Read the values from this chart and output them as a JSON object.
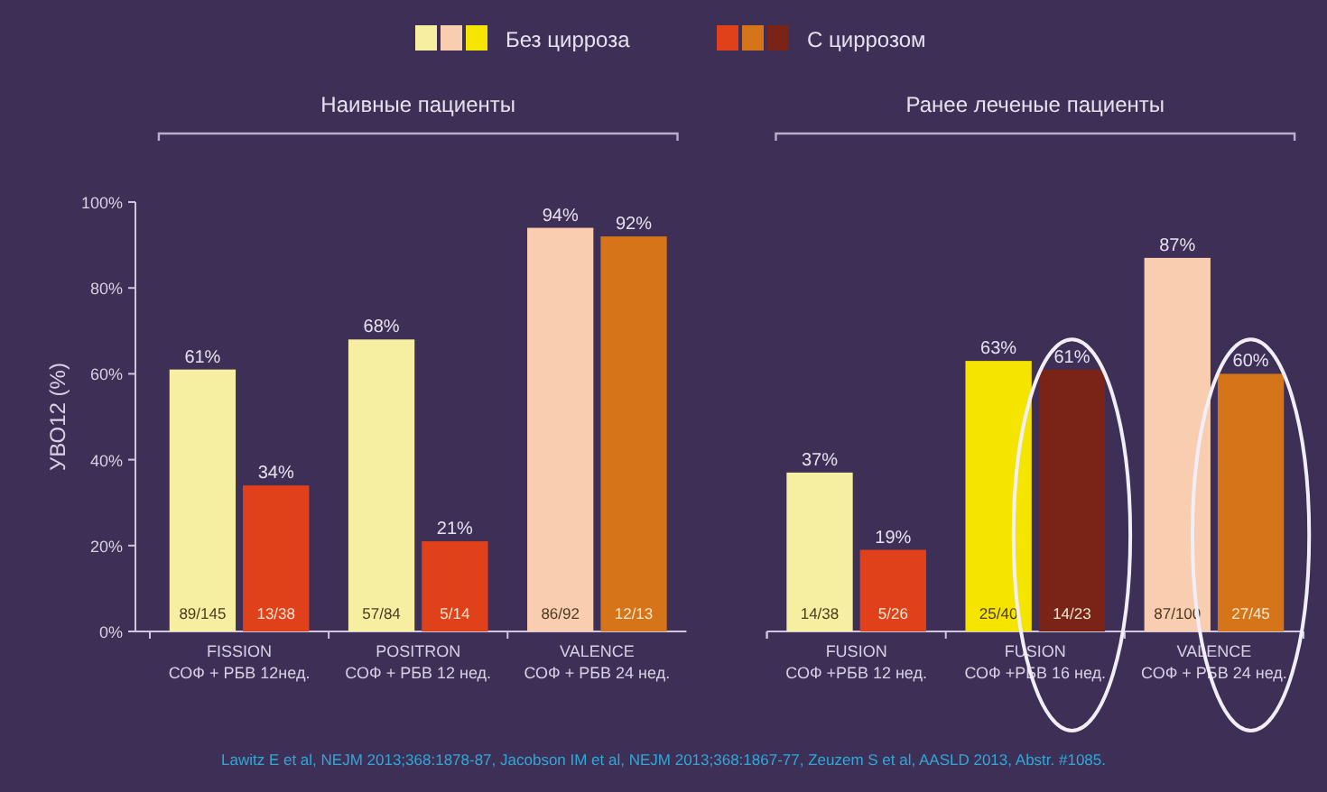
{
  "chart_data": {
    "type": "bar",
    "ylabel": "УВО12 (%)",
    "categories": [
      "FISSION\nСОФ + РБВ 12нед.",
      "POSITRON\nСОФ + РБВ 12 нед.",
      "VALENCE\nСОФ + РБВ 24 нед.",
      "FUSION\nСОФ +РБВ 12 нед.",
      "FUSION\nСОФ +РБВ 16 нед.",
      "VALENCE\nСОФ + РБВ 24 нед. "
    ],
    "series": [
      {
        "name": "Без цирроза",
        "color": "#f6eea0",
        "colors": [
          "#f6eea0",
          "#f6eea0",
          "#f8cdb0",
          "#f6eea0",
          "#f5e400",
          "#f8cdb0"
        ],
        "values": [
          61,
          68,
          94,
          37,
          63,
          87
        ],
        "value_labels": [
          "61%",
          "68%",
          "94%",
          "37%",
          "63%",
          "87%"
        ]
      },
      {
        "name": "С циррозом",
        "color": "#e0401a",
        "colors": [
          "#e0401a",
          "#e0401a",
          "#d57418",
          "#e0401a",
          "#7a2418",
          "#d57418"
        ],
        "values": [
          34,
          21,
          92,
          19,
          61,
          60
        ],
        "value_labels": [
          "34%",
          "21%",
          "92%",
          "19%",
          "61%",
          "60%"
        ]
      }
    ],
    "ylim": [
      0,
      100
    ],
    "yticks": [
      {
        "value": 0,
        "label": "0%"
      },
      {
        "value": 20,
        "label": "20%"
      },
      {
        "value": 40,
        "label": "40%"
      },
      {
        "value": 60,
        "label": "60%"
      },
      {
        "value": 80,
        "label": "80%"
      },
      {
        "value": 100,
        "label": "100%"
      }
    ],
    "legend": "top",
    "annotations": [
      "Наивные пациенты",
      "Ранее леченые пациенты",
      {
        "text": "89/145",
        "x": "FISSION\nСОФ + РБВ 12нед.",
        "y": 0
      },
      {
        "text": "57/84",
        "x": "POSITRON\nСОФ + РБВ 12 нед.",
        "y": 0
      },
      {
        "text": "86/92",
        "x": "VALENCE\nСОФ + РБВ 24 нед.",
        "y": 0
      },
      {
        "text": "14/38",
        "x": "FUSION\nСОФ +РБВ 12 нед.",
        "y": 0
      },
      {
        "text": "25/40",
        "x": "FUSION\nСОФ +РБВ 16 нед.",
        "y": 0
      },
      {
        "text": "87/100",
        "x": "VALENCE\nСОФ + РБВ 24 нед. ",
        "y": 0
      },
      {
        "text": "13/38",
        "x": "FISSION\nСОФ + РБВ 12нед.",
        "y": 0
      },
      {
        "text": "5/14",
        "x": "POSITRON\nСОФ + РБВ 12 нед.",
        "y": 0
      },
      {
        "text": "12/13",
        "x": "VALENCE\nСОФ + РБВ 24 нед.",
        "y": 0
      },
      {
        "text": "5/26",
        "x": "FUSION\nСОФ +РБВ 12 нед.",
        "y": 0
      },
      {
        "text": "14/23",
        "x": "FUSION\nСОФ +РБВ 16 нед.",
        "y": 0
      },
      {
        "text": "27/45",
        "x": "VALENCE\nСОФ + РБВ 24 нед. ",
        "y": 0
      },
      "Lawitz E et al, NEJM 2013;368:1878-87, Jacobson IM et al, NEJM 2013;368:1867-77, Zeuzem S et al, AASLD 2013, Abstr. #1085."
    ]
  }
}
